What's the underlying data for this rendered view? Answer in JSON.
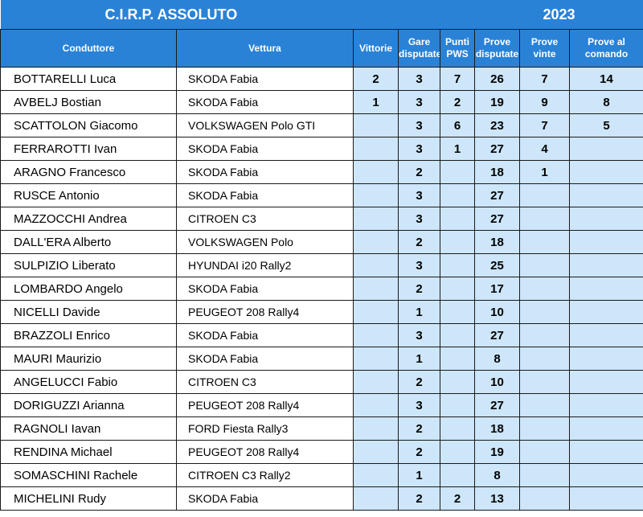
{
  "title": {
    "left": "C.I.R.P. ASSOLUTO",
    "right": "2023"
  },
  "columns": {
    "driver": "Conduttore",
    "car": "Vettura",
    "wins": "Vittorie",
    "races": "Gare disputate",
    "pws": "Punti PWS",
    "stages": "Prove disputate",
    "stages_won": "Prove vinte",
    "stages_lead": "Prove al comando"
  },
  "rows": [
    {
      "driver": "BOTTARELLI Luca",
      "car": "SKODA Fabia",
      "wins": "2",
      "races": "3",
      "pws": "7",
      "stages": "26",
      "stages_won": "7",
      "stages_lead": "14"
    },
    {
      "driver": "AVBELJ Bostian",
      "car": "SKODA Fabia",
      "wins": "1",
      "races": "3",
      "pws": "2",
      "stages": "19",
      "stages_won": "9",
      "stages_lead": "8"
    },
    {
      "driver": "SCATTOLON Giacomo",
      "car": "VOLKSWAGEN Polo GTI",
      "wins": "",
      "races": "3",
      "pws": "6",
      "stages": "23",
      "stages_won": "7",
      "stages_lead": "5"
    },
    {
      "driver": "FERRAROTTI Ivan",
      "car": "SKODA Fabia",
      "wins": "",
      "races": "3",
      "pws": "1",
      "stages": "27",
      "stages_won": "4",
      "stages_lead": ""
    },
    {
      "driver": "ARAGNO Francesco",
      "car": "SKODA Fabia",
      "wins": "",
      "races": "2",
      "pws": "",
      "stages": "18",
      "stages_won": "1",
      "stages_lead": ""
    },
    {
      "driver": "RUSCE Antonio",
      "car": "SKODA Fabia",
      "wins": "",
      "races": "3",
      "pws": "",
      "stages": "27",
      "stages_won": "",
      "stages_lead": ""
    },
    {
      "driver": "MAZZOCCHI Andrea",
      "car": "CITROEN C3",
      "wins": "",
      "races": "3",
      "pws": "",
      "stages": "27",
      "stages_won": "",
      "stages_lead": ""
    },
    {
      "driver": "DALL'ERA Alberto",
      "car": "VOLKSWAGEN Polo",
      "wins": "",
      "races": "2",
      "pws": "",
      "stages": "18",
      "stages_won": "",
      "stages_lead": ""
    },
    {
      "driver": "SULPIZIO Liberato",
      "car": "HYUNDAI i20 Rally2",
      "wins": "",
      "races": "3",
      "pws": "",
      "stages": "25",
      "stages_won": "",
      "stages_lead": ""
    },
    {
      "driver": "LOMBARDO Angelo",
      "car": "SKODA Fabia",
      "wins": "",
      "races": "2",
      "pws": "",
      "stages": "17",
      "stages_won": "",
      "stages_lead": ""
    },
    {
      "driver": "NICELLI Davide",
      "car": "PEUGEOT 208 Rally4",
      "wins": "",
      "races": "1",
      "pws": "",
      "stages": "10",
      "stages_won": "",
      "stages_lead": ""
    },
    {
      "driver": "BRAZZOLI Enrico",
      "car": "SKODA Fabia",
      "wins": "",
      "races": "3",
      "pws": "",
      "stages": "27",
      "stages_won": "",
      "stages_lead": ""
    },
    {
      "driver": "MAURI Maurizio",
      "car": "SKODA Fabia",
      "wins": "",
      "races": "1",
      "pws": "",
      "stages": "8",
      "stages_won": "",
      "stages_lead": ""
    },
    {
      "driver": "ANGELUCCI Fabio",
      "car": "CITROEN C3",
      "wins": "",
      "races": "2",
      "pws": "",
      "stages": "10",
      "stages_won": "",
      "stages_lead": ""
    },
    {
      "driver": "DORIGUZZI Arianna",
      "car": "PEUGEOT 208 Rally4",
      "wins": "",
      "races": "3",
      "pws": "",
      "stages": "27",
      "stages_won": "",
      "stages_lead": ""
    },
    {
      "driver": "RAGNOLI Iavan",
      "car": "FORD Fiesta Rally3",
      "wins": "",
      "races": "2",
      "pws": "",
      "stages": "18",
      "stages_won": "",
      "stages_lead": ""
    },
    {
      "driver": "RENDINA Michael",
      "car": "PEUGEOT 208 Rally4",
      "wins": "",
      "races": "2",
      "pws": "",
      "stages": "19",
      "stages_won": "",
      "stages_lead": ""
    },
    {
      "driver": "SOMASCHINI Rachele",
      "car": "CITROEN C3 Rally2",
      "wins": "",
      "races": "1",
      "pws": "",
      "stages": "8",
      "stages_won": "",
      "stages_lead": ""
    },
    {
      "driver": "MICHELINI Rudy",
      "car": "SKODA Fabia",
      "wins": "",
      "races": "2",
      "pws": "2",
      "stages": "13",
      "stages_won": "",
      "stages_lead": ""
    }
  ]
}
